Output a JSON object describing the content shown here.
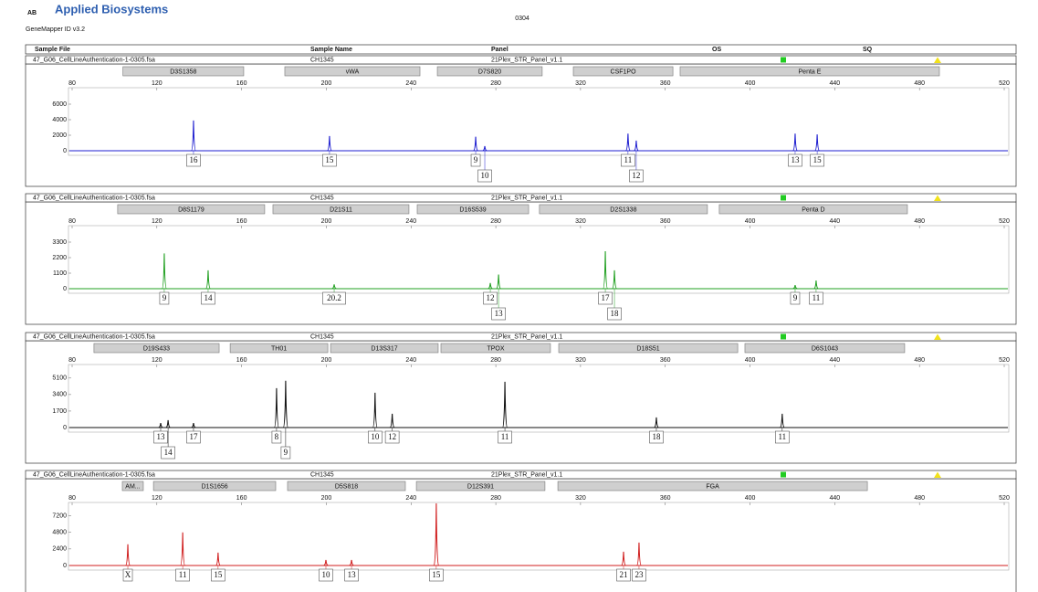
{
  "header": {
    "brand": "Applied Biosystems",
    "software": "GeneMapper ID v3.2",
    "run": "0304",
    "columns": [
      "Sample File",
      "Sample Name",
      "Panel",
      "OS",
      "SQ"
    ]
  },
  "chart_data": [
    {
      "type": "electropherogram",
      "sample_file": "47_G06_CellLineAuthentication-1-0305.fsa",
      "sample_name": "CH1345",
      "panel": "21Plex_STR_Panel_v1.1",
      "color": "#1f1fd0",
      "xlim": [
        80,
        520
      ],
      "xticks": [
        80,
        120,
        160,
        200,
        240,
        280,
        320,
        360,
        400,
        440,
        480,
        520
      ],
      "ylim": [
        0,
        8000
      ],
      "yticks": [
        0,
        2000,
        4000,
        6000
      ],
      "markers": [
        {
          "name": "D3S1358",
          "start": 104,
          "end": 161
        },
        {
          "name": "vWA",
          "start": 180.4,
          "end": 244.2
        },
        {
          "name": "D7S820",
          "start": 252.4,
          "end": 301.9
        },
        {
          "name": "CSF1PO",
          "start": 316.6,
          "end": 363.6
        },
        {
          "name": "Penta E",
          "start": 367,
          "end": 489.4
        }
      ],
      "x": [
        137.3,
        201.5,
        270.5,
        274.8,
        342.4,
        346.3,
        421.3,
        431.7
      ],
      "values": [
        3900,
        1900,
        1800,
        600,
        2200,
        1300,
        2200,
        2100
      ],
      "labels": [
        "16",
        "15",
        "9",
        "10",
        "11",
        "12",
        "13",
        "15"
      ]
    },
    {
      "type": "electropherogram",
      "sample_file": "47_G06_CellLineAuthentication-1-0305.fsa",
      "sample_name": "CH1345",
      "panel": "21Plex_STR_Panel_v1.1",
      "color": "#22a022",
      "xlim": [
        80,
        520
      ],
      "xticks": [
        80,
        120,
        160,
        200,
        240,
        280,
        320,
        360,
        400,
        440,
        480,
        520
      ],
      "ylim": [
        0,
        4400
      ],
      "yticks": [
        0,
        1100,
        2200,
        3300
      ],
      "markers": [
        {
          "name": "D8S1179",
          "start": 101.5,
          "end": 170.9
        },
        {
          "name": "D21S11",
          "start": 174.8,
          "end": 239
        },
        {
          "name": "D16S539",
          "start": 242.9,
          "end": 295.5
        },
        {
          "name": "D2S1338",
          "start": 300.6,
          "end": 379.9
        },
        {
          "name": "Penta D",
          "start": 385.5,
          "end": 474.3
        }
      ],
      "x": [
        123.5,
        144.2,
        203.7,
        277.4,
        281.3,
        331.7,
        336,
        421.3,
        431.2
      ],
      "values": [
        2500,
        1300,
        300,
        400,
        1000,
        2650,
        1300,
        250,
        580
      ],
      "labels": [
        "9",
        "14",
        "20.2",
        "12",
        "13",
        "17",
        "18",
        "9",
        "11"
      ]
    },
    {
      "type": "electropherogram",
      "sample_file": "47_G06_CellLineAuthentication-1-0305.fsa",
      "sample_name": "CH1345",
      "panel": "21Plex_STR_Panel_v1.1",
      "color": "#111111",
      "xlim": [
        80,
        520
      ],
      "xticks": [
        80,
        120,
        160,
        200,
        240,
        280,
        320,
        360,
        400,
        440,
        480,
        520
      ],
      "ylim": [
        0,
        6400
      ],
      "yticks": [
        0,
        1700,
        3400,
        5100
      ],
      "markers": [
        {
          "name": "D19S433",
          "start": 90.3,
          "end": 149.4
        },
        {
          "name": "TH01",
          "start": 154.6,
          "end": 200.7
        },
        {
          "name": "D13S317",
          "start": 202,
          "end": 252.8
        },
        {
          "name": "TPOX",
          "start": 254.1,
          "end": 305.8
        },
        {
          "name": "D18S51",
          "start": 309.7,
          "end": 394.2
        },
        {
          "name": "D6S1043",
          "start": 397.6,
          "end": 473
        }
      ],
      "x": [
        121.8,
        125.3,
        137.3,
        176.5,
        180.8,
        223,
        231.1,
        284.3,
        355.8,
        415.2
      ],
      "values": [
        470,
        760,
        470,
        4060,
        4820,
        3590,
        1420,
        4720,
        1040,
        1420
      ],
      "labels": [
        "13",
        "14",
        "17",
        "8",
        "9",
        "10",
        "12",
        "11",
        "18",
        "11"
      ]
    },
    {
      "type": "electropherogram",
      "sample_file": "47_G06_CellLineAuthentication-1-0305.fsa",
      "sample_name": "CH1345",
      "panel": "21Plex_STR_Panel_v1.1",
      "color": "#d01f1f",
      "xlim": [
        80,
        520
      ],
      "xticks": [
        80,
        120,
        160,
        200,
        240,
        280,
        320,
        360,
        400,
        440,
        480,
        520
      ],
      "ylim": [
        0,
        9000
      ],
      "yticks": [
        0,
        2400,
        4800,
        7200
      ],
      "markers": [
        {
          "name": "AM...",
          "start": 103.7,
          "end": 113.6
        },
        {
          "name": "D1S1656",
          "start": 118.4,
          "end": 176.1
        },
        {
          "name": "D5S818",
          "start": 181.7,
          "end": 237.3
        },
        {
          "name": "D12S391",
          "start": 242.5,
          "end": 303.2
        },
        {
          "name": "FGA",
          "start": 309.3,
          "end": 455.4
        }
      ],
      "x": [
        106.3,
        132.2,
        148.9,
        199.8,
        211.9,
        251.9,
        340.3,
        347.6
      ],
      "values": [
        3070,
        4800,
        1870,
        800,
        800,
        9000,
        2000,
        3330
      ],
      "labels": [
        "X",
        "11",
        "15",
        "10",
        "13",
        "15",
        "21",
        "23"
      ]
    }
  ]
}
